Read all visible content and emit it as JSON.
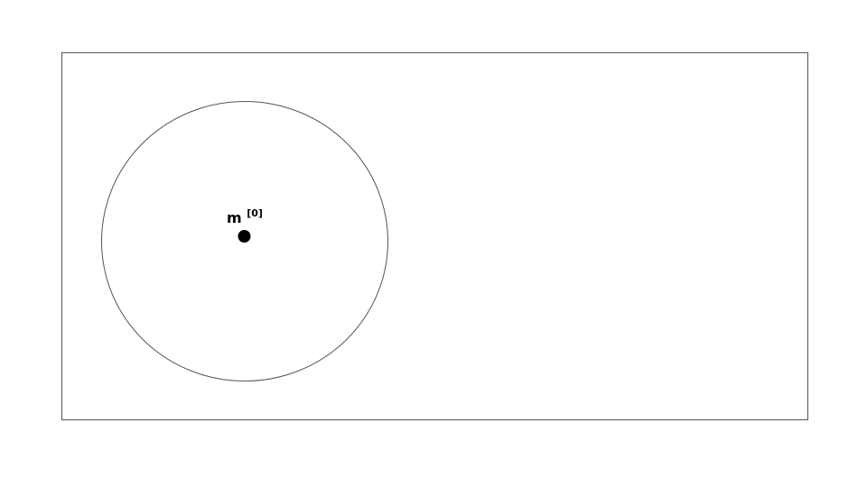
{
  "diagram": {
    "colors": {
      "frame_stroke": "#555555",
      "circle_stroke": "#555555",
      "point_fill": "#000000",
      "background": "#ffffff"
    },
    "point": {
      "symbol": "m",
      "superscript": "[0]"
    }
  }
}
